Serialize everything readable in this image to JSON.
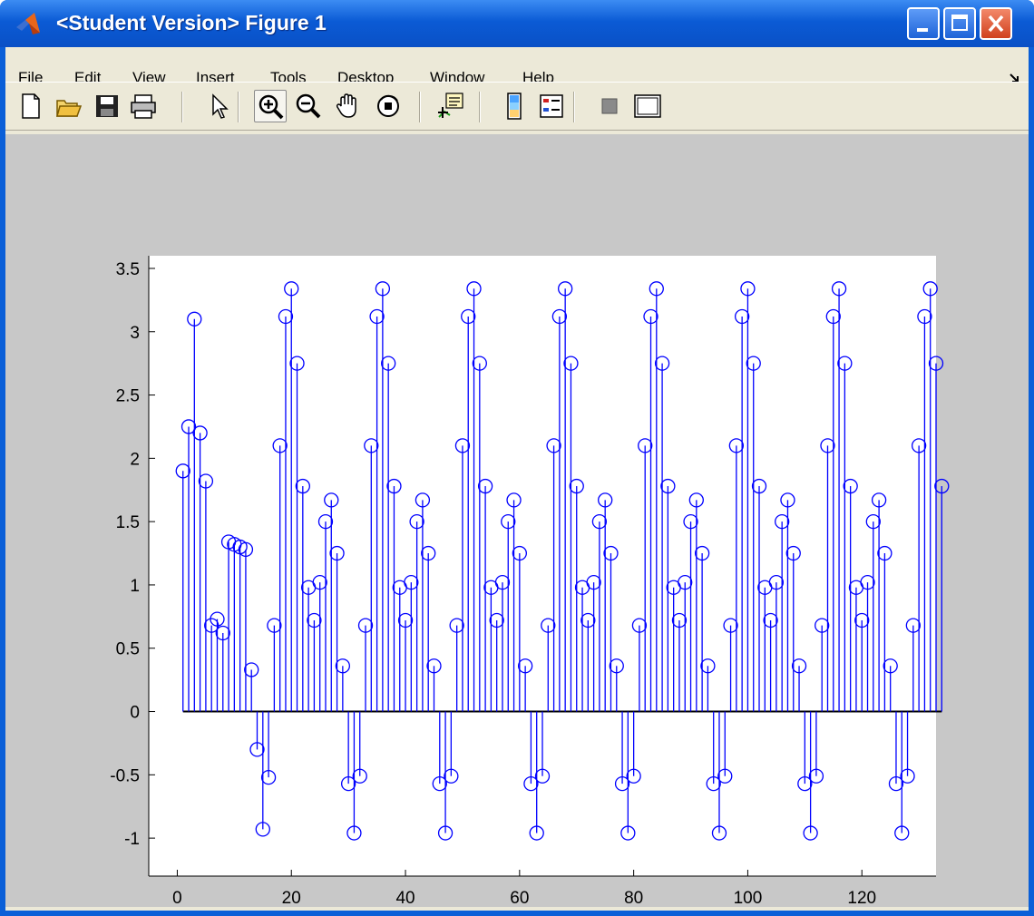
{
  "window": {
    "title": "<Student Version> Figure 1",
    "titlebar_color": "#0a5fd8"
  },
  "menubar": {
    "items": [
      {
        "label": "File"
      },
      {
        "label": "Edit"
      },
      {
        "label": "View"
      },
      {
        "label": "Insert"
      },
      {
        "label": "Tools"
      },
      {
        "label": "Desktop"
      },
      {
        "label": "Window"
      },
      {
        "label": "Help"
      }
    ],
    "dock_icon": "dock-arrow-icon"
  },
  "toolbar": {
    "buttons": [
      {
        "name": "new-figure",
        "icon": "new-document-icon"
      },
      {
        "name": "open-file",
        "icon": "open-folder-icon"
      },
      {
        "name": "save-figure",
        "icon": "save-disk-icon"
      },
      {
        "name": "print-figure",
        "icon": "printer-icon"
      },
      {
        "name": "edit-plot",
        "icon": "pointer-arrow-icon"
      },
      {
        "name": "zoom-in",
        "icon": "zoom-in-icon",
        "pressed": true
      },
      {
        "name": "zoom-out",
        "icon": "zoom-out-icon"
      },
      {
        "name": "pan",
        "icon": "pan-hand-icon"
      },
      {
        "name": "rotate-3d",
        "icon": "rotate-3d-icon"
      },
      {
        "name": "data-cursor",
        "icon": "data-cursor-icon"
      },
      {
        "name": "insert-colorbar",
        "icon": "colorbar-icon"
      },
      {
        "name": "insert-legend",
        "icon": "legend-icon"
      },
      {
        "name": "hide-plot-tools",
        "icon": "hide-tools-icon"
      },
      {
        "name": "show-plot-tools",
        "icon": "show-tools-icon"
      }
    ]
  },
  "colors": {
    "stem": "#0000ff",
    "figure_bg": "#c8c8c8",
    "axes_bg": "#ffffff"
  },
  "chart_data": {
    "type": "stem",
    "marker": "circle",
    "xlim": [
      -5,
      133
    ],
    "ylim": [
      -1.3,
      3.6
    ],
    "xticks": [
      0,
      20,
      40,
      60,
      80,
      100,
      120
    ],
    "yticks": [
      -1,
      -0.5,
      0,
      0.5,
      1,
      1.5,
      2,
      2.5,
      3,
      3.5
    ],
    "xtick_labels": [
      "0",
      "20",
      "40",
      "60",
      "80",
      "100",
      "120"
    ],
    "ytick_labels": [
      "-1",
      "-0.5",
      "0",
      "0.5",
      "1",
      "1.5",
      "2",
      "2.5",
      "3",
      "3.5"
    ],
    "x_start": 1,
    "values": [
      1.9,
      2.25,
      3.1,
      2.2,
      1.82,
      0.68,
      0.73,
      0.62,
      1.34,
      1.32,
      1.3,
      1.28,
      0.33,
      -0.3,
      -0.93,
      -0.52,
      0.68,
      2.1,
      3.12,
      3.34,
      2.75,
      1.78,
      0.98,
      0.72,
      1.02,
      1.5,
      1.67,
      1.25,
      0.36,
      -0.57,
      -0.96,
      -0.51,
      0.68,
      2.1,
      3.12,
      3.34,
      2.75,
      1.78,
      0.98,
      0.72,
      1.02,
      1.5,
      1.67,
      1.25,
      0.36,
      -0.57,
      -0.96,
      -0.51,
      0.68,
      2.1,
      3.12,
      3.34,
      2.75,
      1.78,
      0.98,
      0.72,
      1.02,
      1.5,
      1.67,
      1.25,
      0.36,
      -0.57,
      -0.96,
      -0.51,
      0.68,
      2.1,
      3.12,
      3.34,
      2.75,
      1.78,
      0.98,
      0.72,
      1.02,
      1.5,
      1.67,
      1.25,
      0.36,
      -0.57,
      -0.96,
      -0.51,
      0.68,
      2.1,
      3.12,
      3.34,
      2.75,
      1.78,
      0.98,
      0.72,
      1.02,
      1.5,
      1.67,
      1.25,
      0.36,
      -0.57,
      -0.96,
      -0.51,
      0.68,
      2.1,
      3.12,
      3.34,
      2.75,
      1.78,
      0.98,
      0.72,
      1.02,
      1.5,
      1.67,
      1.25,
      0.36,
      -0.57,
      -0.96,
      -0.51,
      0.68,
      2.1,
      3.12,
      3.34,
      2.75,
      1.78,
      0.98,
      0.72,
      1.02,
      1.5,
      1.67,
      1.25,
      0.36,
      -0.57,
      -0.96,
      -0.51,
      0.68,
      2.1,
      3.12,
      3.34,
      2.75,
      1.78
    ],
    "grid": false,
    "title": "",
    "xlabel": "",
    "ylabel": ""
  }
}
